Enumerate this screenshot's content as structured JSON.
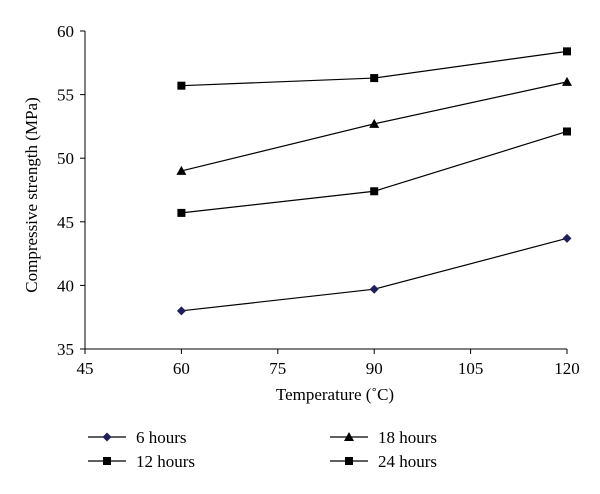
{
  "chart_data": {
    "type": "line",
    "title": "",
    "xlabel": "Temperature (˚C)",
    "ylabel": "Compressive strength (MPa)",
    "xlim": [
      45,
      120
    ],
    "ylim": [
      35,
      60
    ],
    "xticks": [
      45,
      60,
      75,
      90,
      105,
      120
    ],
    "yticks": [
      35,
      40,
      45,
      50,
      55,
      60
    ],
    "grid": false,
    "legend_position": "bottom",
    "x": [
      60,
      90,
      120
    ],
    "series": [
      {
        "name": "6 hours",
        "marker": "diamond",
        "values": [
          38.0,
          39.7,
          43.7
        ]
      },
      {
        "name": "12 hours",
        "marker": "square",
        "values": [
          45.7,
          47.4,
          52.1
        ]
      },
      {
        "name": "18 hours",
        "marker": "triangle",
        "values": [
          49.0,
          52.7,
          56.0
        ]
      },
      {
        "name": "24 hours",
        "marker": "square",
        "values": [
          55.7,
          56.3,
          58.4
        ]
      }
    ],
    "colors": {
      "line": "#000000",
      "diamond_fill": "#1f1f5a"
    }
  }
}
